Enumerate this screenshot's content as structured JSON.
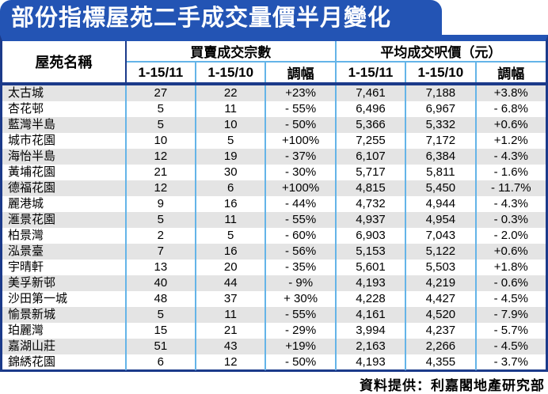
{
  "title": "部份指標屋苑二手成交量價半月變化",
  "chart_data": {
    "type": "table",
    "title": "部份指標屋苑二手成交量價半月變化",
    "col1_header": "屋苑名稱",
    "groups": [
      {
        "label": "買賣成交宗數",
        "sub": [
          "1-15/11",
          "1-15/10",
          "調幅"
        ]
      },
      {
        "label": "平均成交呎價（元）",
        "sub": [
          "1-15/11",
          "1-15/10",
          "調幅"
        ]
      }
    ],
    "rows": [
      {
        "name": "太古城",
        "vol_nov": "27",
        "vol_oct": "22",
        "vol_chg": "+23%",
        "price_nov": "7,461",
        "price_oct": "7,188",
        "price_chg": "+3.8%"
      },
      {
        "name": "杏花邨",
        "vol_nov": "5",
        "vol_oct": "11",
        "vol_chg": "- 55%",
        "price_nov": "6,496",
        "price_oct": "6,967",
        "price_chg": "- 6.8%"
      },
      {
        "name": "藍灣半島",
        "vol_nov": "5",
        "vol_oct": "10",
        "vol_chg": "- 50%",
        "price_nov": "5,366",
        "price_oct": "5,332",
        "price_chg": "+0.6%"
      },
      {
        "name": "城市花園",
        "vol_nov": "10",
        "vol_oct": "5",
        "vol_chg": "+100%",
        "price_nov": "7,255",
        "price_oct": "7,172",
        "price_chg": "+1.2%"
      },
      {
        "name": "海怡半島",
        "vol_nov": "12",
        "vol_oct": "19",
        "vol_chg": "- 37%",
        "price_nov": "6,107",
        "price_oct": "6,384",
        "price_chg": "- 4.3%"
      },
      {
        "name": "黃埔花園",
        "vol_nov": "21",
        "vol_oct": "30",
        "vol_chg": "- 30%",
        "price_nov": "5,717",
        "price_oct": "5,811",
        "price_chg": "- 1.6%"
      },
      {
        "name": "德福花園",
        "vol_nov": "12",
        "vol_oct": "6",
        "vol_chg": "+100%",
        "price_nov": "4,815",
        "price_oct": "5,450",
        "price_chg": "- 11.7%"
      },
      {
        "name": "麗港城",
        "vol_nov": "9",
        "vol_oct": "16",
        "vol_chg": "- 44%",
        "price_nov": "4,732",
        "price_oct": "4,944",
        "price_chg": "- 4.3%"
      },
      {
        "name": "滙景花園",
        "vol_nov": "5",
        "vol_oct": "11",
        "vol_chg": "- 55%",
        "price_nov": "4,937",
        "price_oct": "4,954",
        "price_chg": "- 0.3%"
      },
      {
        "name": "柏景灣",
        "vol_nov": "2",
        "vol_oct": "5",
        "vol_chg": "- 60%",
        "price_nov": "6,903",
        "price_oct": "7,043",
        "price_chg": "- 2.0%"
      },
      {
        "name": "泓景臺",
        "vol_nov": "7",
        "vol_oct": "16",
        "vol_chg": "- 56%",
        "price_nov": "5,153",
        "price_oct": "5,122",
        "price_chg": "+0.6%"
      },
      {
        "name": "宇晴軒",
        "vol_nov": "13",
        "vol_oct": "20",
        "vol_chg": "- 35%",
        "price_nov": "5,601",
        "price_oct": "5,503",
        "price_chg": "+1.8%"
      },
      {
        "name": "美孚新邨",
        "vol_nov": "40",
        "vol_oct": "44",
        "vol_chg": "- 9%",
        "price_nov": "4,193",
        "price_oct": "4,219",
        "price_chg": "- 0.6%"
      },
      {
        "name": "沙田第一城",
        "vol_nov": "48",
        "vol_oct": "37",
        "vol_chg": "+ 30%",
        "price_nov": "4,228",
        "price_oct": "4,427",
        "price_chg": "- 4.5%"
      },
      {
        "name": "愉景新城",
        "vol_nov": "5",
        "vol_oct": "11",
        "vol_chg": "- 55%",
        "price_nov": "4,161",
        "price_oct": "4,520",
        "price_chg": "- 7.9%"
      },
      {
        "name": "珀麗灣",
        "vol_nov": "15",
        "vol_oct": "21",
        "vol_chg": "- 29%",
        "price_nov": "3,994",
        "price_oct": "4,237",
        "price_chg": "- 5.7%"
      },
      {
        "name": "嘉湖山莊",
        "vol_nov": "51",
        "vol_oct": "43",
        "vol_chg": "+19%",
        "price_nov": "2,163",
        "price_oct": "2,266",
        "price_chg": "- 4.5%"
      },
      {
        "name": "錦綉花園",
        "vol_nov": "6",
        "vol_oct": "12",
        "vol_chg": "- 50%",
        "price_nov": "4,193",
        "price_oct": "4,355",
        "price_chg": "- 3.7%"
      }
    ],
    "source": "資料提供：利嘉閣地產研究部"
  },
  "colors": {
    "title_bg": "#2354b4",
    "navy": "#1b3a8a",
    "lblue": "#64b4e8",
    "row_alt": "#e4e4e4"
  }
}
